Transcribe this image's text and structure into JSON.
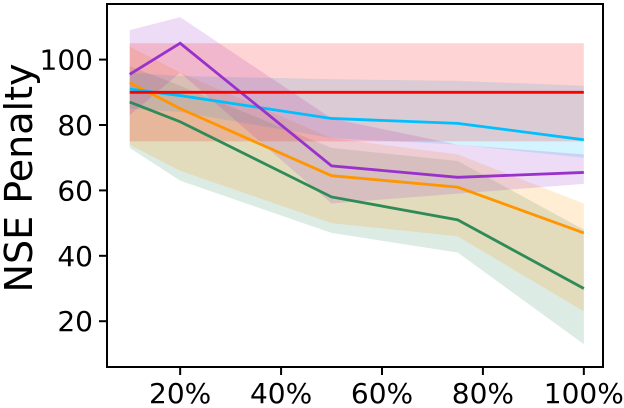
{
  "chart_data": {
    "type": "line",
    "title": "",
    "xlabel": "",
    "ylabel": "NSE Penalty",
    "grid": false,
    "legend": "none",
    "x_unit": "%",
    "x": [
      10,
      20,
      50,
      75,
      100
    ],
    "xlim": [
      5.5,
      103.8
    ],
    "ylim": [
      6,
      117
    ],
    "x_ticks": [
      {
        "value": 20,
        "label": "20%"
      },
      {
        "value": 40,
        "label": "40%"
      },
      {
        "value": 60,
        "label": "60%"
      },
      {
        "value": 80,
        "label": "80%"
      },
      {
        "value": 100,
        "label": "100%"
      }
    ],
    "y_ticks": [
      {
        "value": 20,
        "label": "20"
      },
      {
        "value": 40,
        "label": "40"
      },
      {
        "value": 60,
        "label": "60"
      },
      {
        "value": 80,
        "label": "80"
      },
      {
        "value": 100,
        "label": "100"
      }
    ],
    "band_opacity": 0.17,
    "series": [
      {
        "name": "green-series",
        "color": "#2e8b57",
        "values": [
          87,
          81,
          58,
          51,
          30
        ],
        "band_upper": [
          98,
          92,
          73,
          69,
          48
        ],
        "band_lower": [
          73,
          63,
          47,
          41,
          13
        ]
      },
      {
        "name": "orange-series",
        "color": "#ff9500",
        "values": [
          93,
          85,
          64.5,
          61,
          47
        ],
        "band_upper": [
          104,
          96,
          76,
          71,
          56
        ],
        "band_lower": [
          74,
          66,
          50,
          46,
          23
        ]
      },
      {
        "name": "cyan-series",
        "color": "#00bfff",
        "values": [
          91,
          89,
          82,
          80.5,
          75.5
        ],
        "band_upper": [
          96,
          95,
          94,
          93.5,
          92
        ],
        "band_lower": [
          85,
          84,
          76,
          74,
          70
        ]
      },
      {
        "name": "purple-series",
        "color": "#9932cc",
        "values": [
          95.5,
          105,
          67.5,
          64,
          65.5
        ],
        "band_upper": [
          109,
          113,
          82,
          74,
          71
        ],
        "band_lower": [
          83,
          96,
          56,
          59,
          62
        ]
      },
      {
        "name": "red-baseline-series",
        "color": "#fe0000",
        "values": [
          90,
          90,
          90,
          90,
          90
        ],
        "band_upper": [
          105,
          105,
          105,
          105,
          105
        ],
        "band_lower": [
          75,
          75,
          75,
          75,
          75
        ]
      }
    ]
  }
}
